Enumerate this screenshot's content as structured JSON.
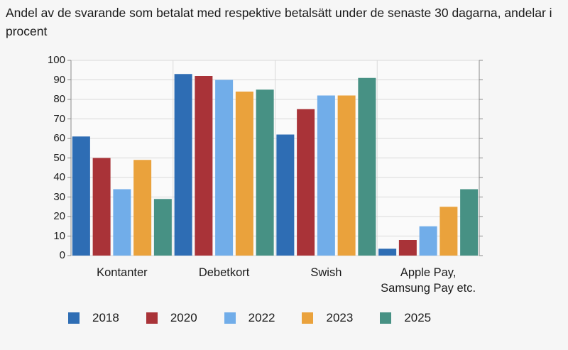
{
  "title": "Andel av de svarande som betalat med respektive betalsätt under de senaste 30 dagarna, andelar i procent",
  "chart_data": {
    "type": "bar",
    "title": "Andel av de svarande som betalat med respektive betalsätt under de senaste 30 dagarna, andelar i procent",
    "categories": [
      "Kontanter",
      "Debetkort",
      "Swish",
      "Apple Pay,\nSamsung Pay etc."
    ],
    "series": [
      {
        "name": "2018",
        "color": "#2E6DB4",
        "values": [
          61,
          93,
          62,
          3.5
        ]
      },
      {
        "name": "2020",
        "color": "#A93338",
        "values": [
          50,
          92,
          75,
          8
        ]
      },
      {
        "name": "2022",
        "color": "#71ADE9",
        "values": [
          34,
          90,
          82,
          15
        ]
      },
      {
        "name": "2023",
        "color": "#EAA23C",
        "values": [
          49,
          84,
          82,
          25
        ]
      },
      {
        "name": "2025",
        "color": "#479184",
        "values": [
          29,
          85,
          91,
          34
        ]
      }
    ],
    "xlabel": "",
    "ylabel": "",
    "ylim": [
      0,
      100
    ],
    "yticks": [
      0,
      10,
      20,
      30,
      40,
      50,
      60,
      70,
      80,
      90,
      100
    ],
    "grid": true,
    "legend_position": "bottom"
  },
  "colors": {
    "page_bg": "#F6F6F6",
    "plot_bg": "#FAFAFA",
    "gridline": "#D9D9D9",
    "axis": "#8C8C8C",
    "text": "#1A1A1A"
  }
}
